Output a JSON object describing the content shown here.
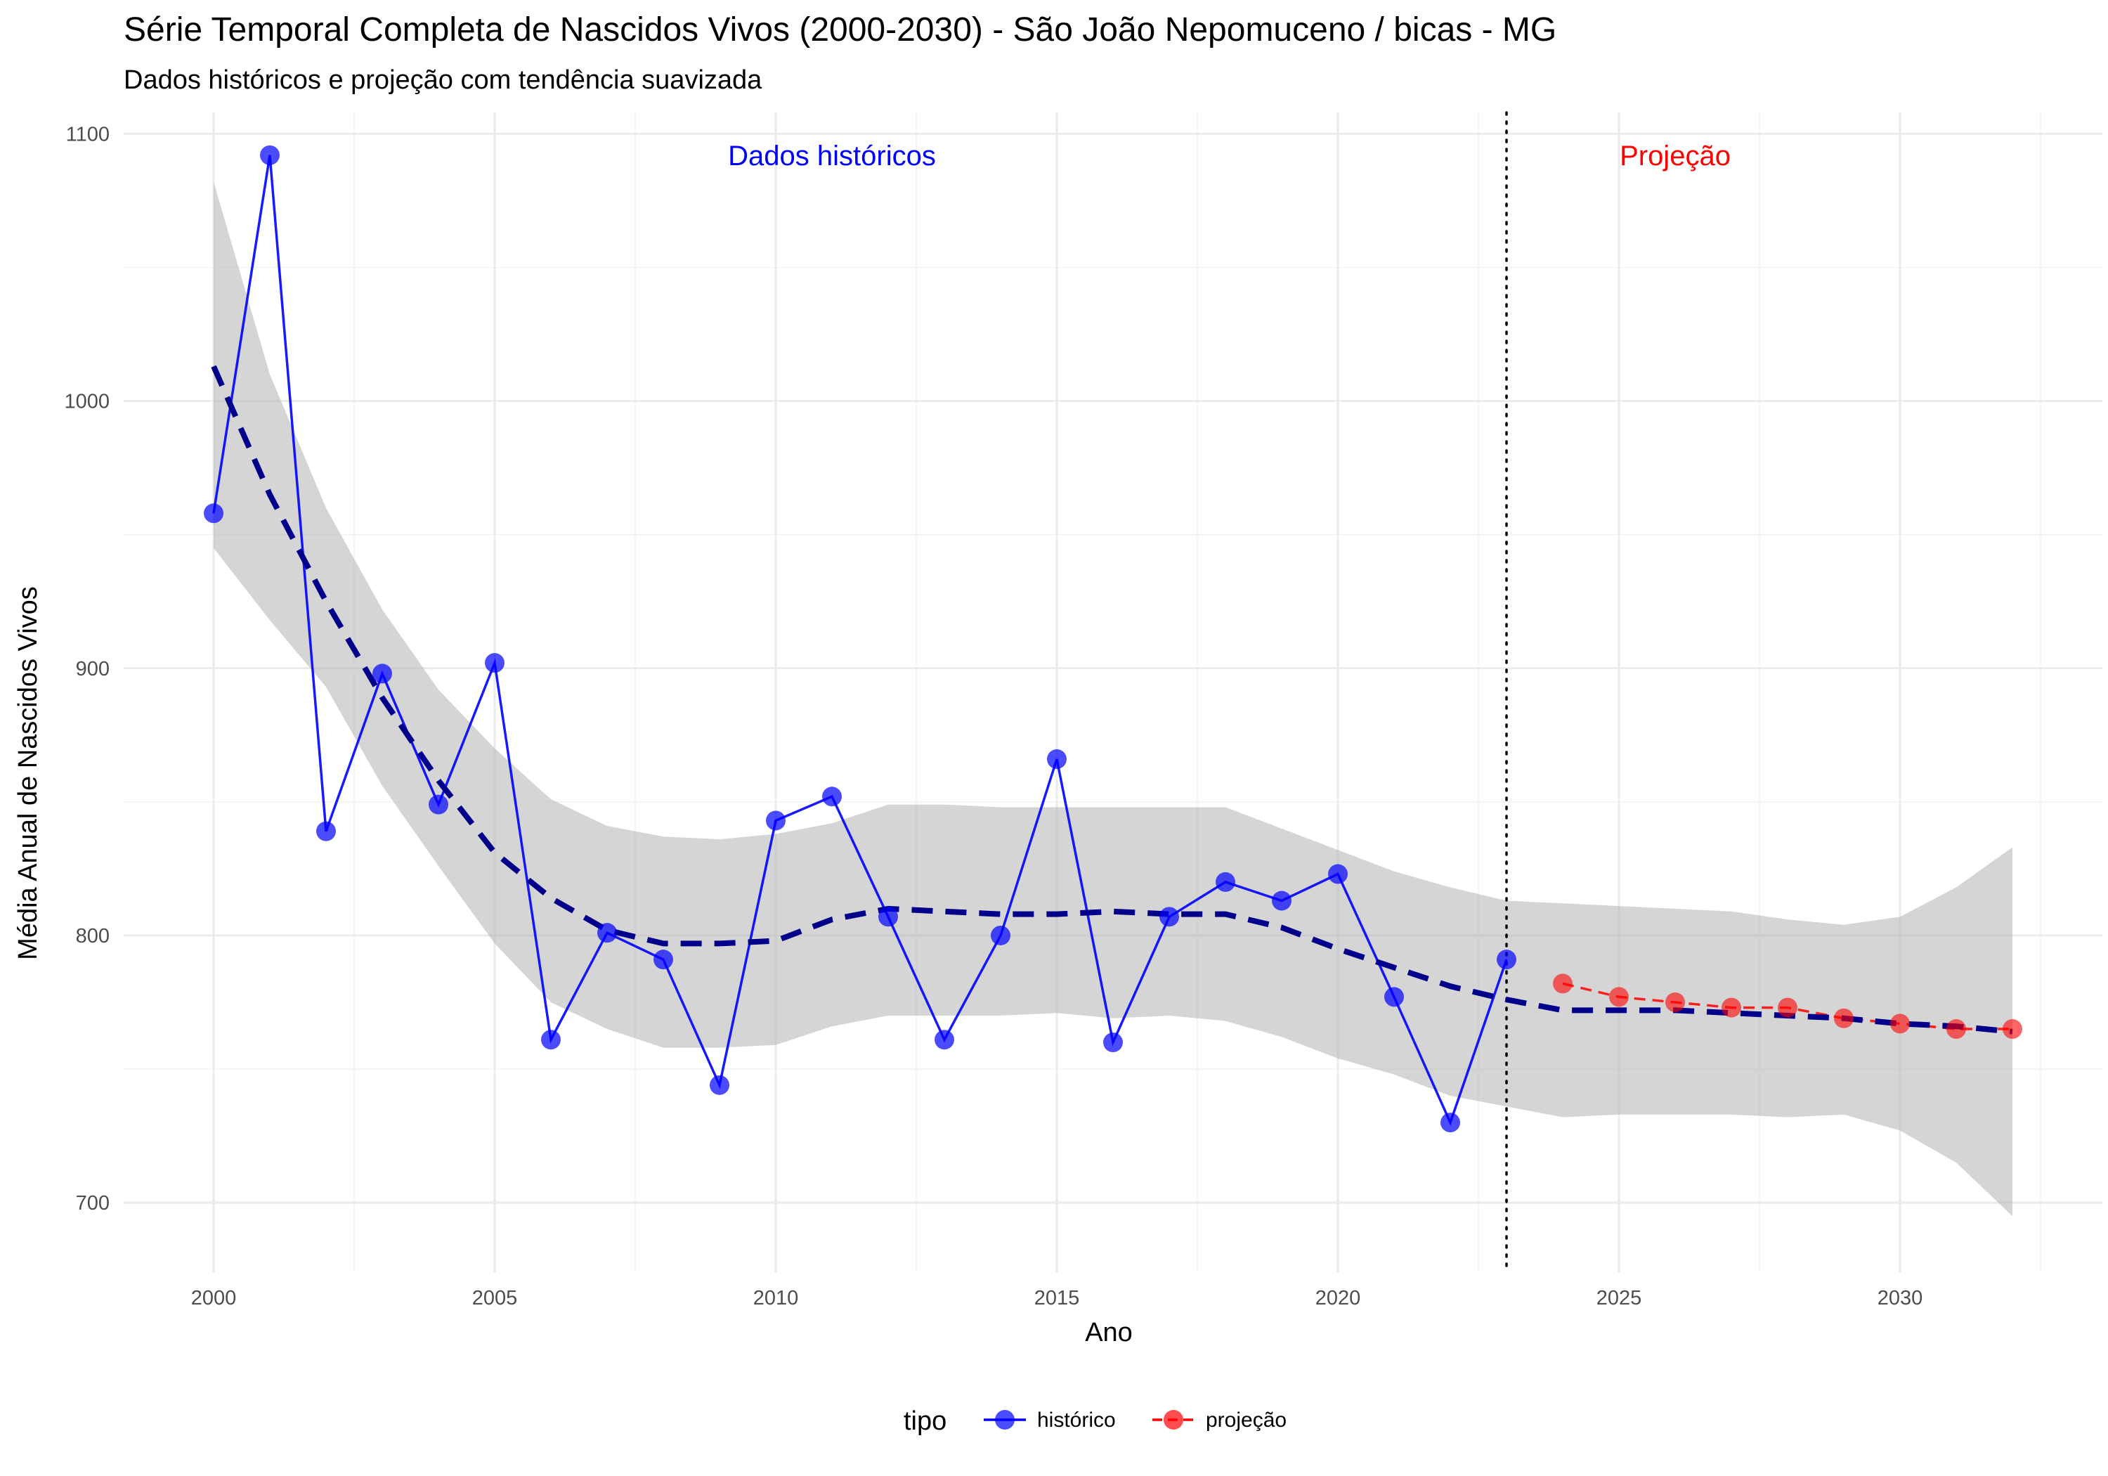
{
  "chart_data": {
    "type": "line",
    "title": "Série Temporal Completa de Nascidos Vivos (2000-2030) -  São João Nepomuceno / bicas - MG",
    "subtitle": "Dados históricos e projeção com tendência suavizada",
    "xlabel": "Ano",
    "ylabel": "Média Anual de Nascidos Vivos",
    "xlim": [
      1998.4,
      2033.6
    ],
    "ylim": [
      674,
      1108
    ],
    "x_ticks": [
      2000,
      2005,
      2010,
      2015,
      2020,
      2025,
      2030
    ],
    "y_ticks": [
      700,
      800,
      900,
      1000,
      1100
    ],
    "grid": true,
    "legend": {
      "title": "tipo",
      "position": "bottom"
    },
    "series": [
      {
        "name": "histórico",
        "color": "#0000ff",
        "x": [
          2000,
          2001,
          2002,
          2003,
          2004,
          2005,
          2006,
          2007,
          2008,
          2009,
          2010,
          2011,
          2012,
          2013,
          2014,
          2015,
          2016,
          2017,
          2018,
          2019,
          2020,
          2021,
          2022,
          2023
        ],
        "y": [
          958,
          1092,
          839,
          898,
          849,
          902,
          761,
          801,
          791,
          744,
          843,
          852,
          807,
          761,
          800,
          866,
          760,
          807,
          820,
          813,
          823,
          777,
          730,
          791
        ]
      },
      {
        "name": "projeção",
        "color": "#ff0000",
        "x": [
          2024,
          2025,
          2026,
          2027,
          2028,
          2029,
          2030,
          2031,
          2032
        ],
        "y": [
          782,
          777,
          775,
          773,
          773,
          769,
          767,
          765,
          765
        ]
      }
    ],
    "trend": {
      "color": "#00008b",
      "x": [
        2000,
        2001,
        2002,
        2003,
        2004,
        2005,
        2006,
        2007,
        2008,
        2009,
        2010,
        2011,
        2012,
        2013,
        2014,
        2015,
        2016,
        2017,
        2018,
        2019,
        2020,
        2021,
        2022,
        2023,
        2024,
        2025,
        2026,
        2027,
        2028,
        2029,
        2030,
        2031,
        2032
      ],
      "y": [
        1013,
        965,
        925,
        889,
        858,
        831,
        814,
        802,
        797,
        797,
        798,
        806,
        810,
        809,
        808,
        808,
        809,
        808,
        808,
        803,
        795,
        788,
        781,
        776,
        772,
        772,
        772,
        771,
        770,
        769,
        767,
        766,
        764
      ],
      "upper": [
        1082,
        1010,
        960,
        922,
        892,
        870,
        851,
        841,
        837,
        836,
        838,
        842,
        849,
        849,
        848,
        848,
        848,
        848,
        848,
        840,
        832,
        824,
        818,
        813,
        812,
        811,
        810,
        809,
        806,
        804,
        807,
        818,
        833
      ],
      "lower": [
        945,
        918,
        893,
        856,
        826,
        797,
        775,
        765,
        758,
        758,
        759,
        766,
        770,
        770,
        770,
        771,
        769,
        770,
        768,
        762,
        754,
        748,
        740,
        736,
        732,
        733,
        733,
        733,
        732,
        733,
        727,
        715,
        695
      ]
    },
    "vline": {
      "x": 2023
    },
    "annotations": [
      {
        "text": "Dados históricos",
        "x": 2011,
        "y": 1092,
        "color": "#0000ff"
      },
      {
        "text": "Projeção",
        "x": 2026,
        "y": 1092,
        "color": "#ff0000"
      }
    ]
  }
}
